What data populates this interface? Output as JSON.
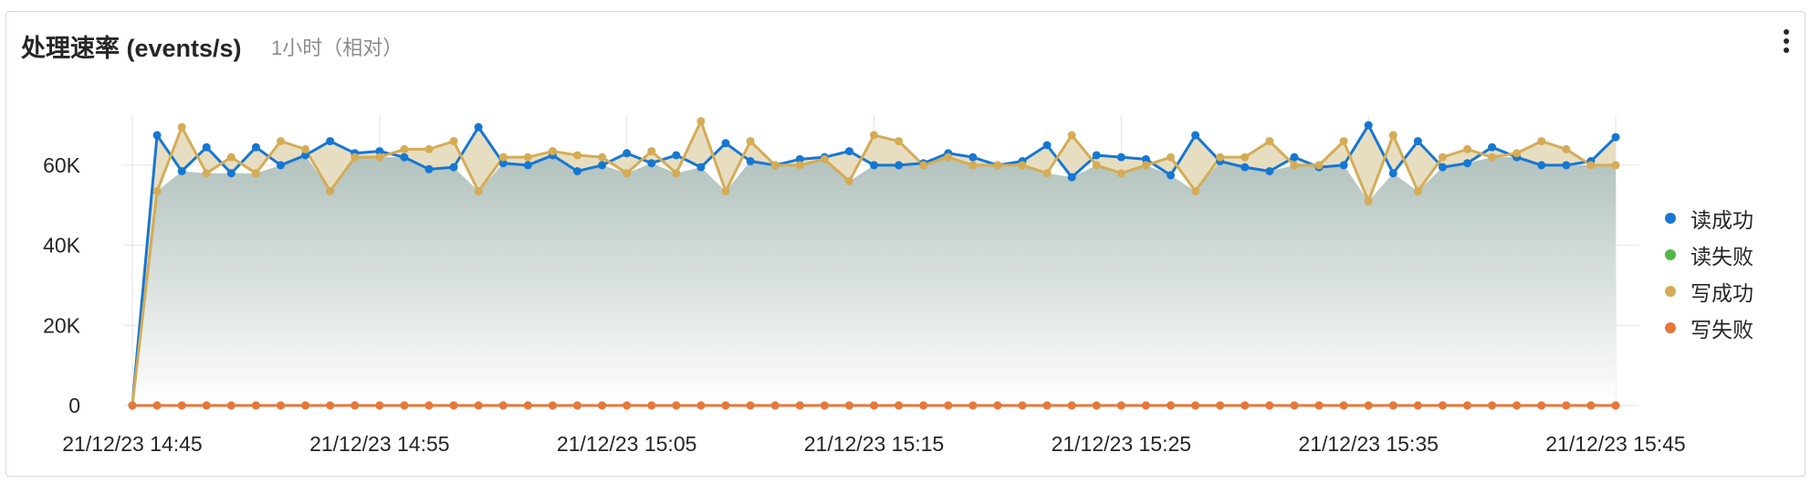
{
  "panel": {
    "title": "处理速率 (events/s)",
    "subtitle": "1小时（相对）",
    "menu_icon": "vertical-ellipsis-icon"
  },
  "chart_data": {
    "type": "area",
    "title": "处理速率 (events/s)",
    "x_range_minutes": [
      0,
      60
    ],
    "x_ticks": [
      {
        "minute": 0,
        "label": "21/12/23 14:45"
      },
      {
        "minute": 10,
        "label": "21/12/23 14:55"
      },
      {
        "minute": 20,
        "label": "21/12/23 15:05"
      },
      {
        "minute": 30,
        "label": "21/12/23 15:15"
      },
      {
        "minute": 40,
        "label": "21/12/23 15:25"
      },
      {
        "minute": 50,
        "label": "21/12/23 15:35"
      },
      {
        "minute": 60,
        "label": "21/12/23 15:45"
      }
    ],
    "y_ticks": [
      {
        "value": 0,
        "label": "0"
      },
      {
        "value": 20000,
        "label": "20K"
      },
      {
        "value": 40000,
        "label": "40K"
      },
      {
        "value": 60000,
        "label": "60K"
      }
    ],
    "ylim": [
      0,
      78000
    ],
    "grid": true,
    "legend_position": "right",
    "series": [
      {
        "name": "读成功",
        "color": "#1677d2",
        "fill": "#a8ccf0",
        "values": [
          0,
          67500,
          58500,
          64500,
          58000,
          64500,
          60000,
          62500,
          66000,
          63000,
          63500,
          62000,
          59000,
          59500,
          69500,
          60500,
          60000,
          62500,
          58500,
          60000,
          63000,
          60500,
          62500,
          59500,
          65500,
          61000,
          60000,
          61500,
          62000,
          63500,
          60000,
          60000,
          60500,
          63000,
          62000,
          60000,
          61000,
          65000,
          57000,
          62500,
          62000,
          61500,
          57500,
          67500,
          61000,
          59500,
          58500,
          62000,
          59500,
          60000,
          70000,
          58000,
          66000,
          59500,
          60500,
          64500,
          62000,
          60000,
          60000,
          61000,
          67000
        ]
      },
      {
        "name": "读失败",
        "color": "#52b848",
        "fill": "none",
        "values": [
          0,
          0,
          0,
          0,
          0,
          0,
          0,
          0,
          0,
          0,
          0,
          0,
          0,
          0,
          0,
          0,
          0,
          0,
          0,
          0,
          0,
          0,
          0,
          0,
          0,
          0,
          0,
          0,
          0,
          0,
          0,
          0,
          0,
          0,
          0,
          0,
          0,
          0,
          0,
          0,
          0,
          0,
          0,
          0,
          0,
          0,
          0,
          0,
          0,
          0,
          0,
          0,
          0,
          0,
          0,
          0,
          0,
          0,
          0,
          0,
          0
        ]
      },
      {
        "name": "写成功",
        "color": "#d4ac56",
        "fill": "#f0dfb8",
        "values": [
          0,
          53500,
          69500,
          58000,
          62000,
          58000,
          66000,
          64000,
          53500,
          62000,
          62000,
          64000,
          64000,
          66000,
          53500,
          62000,
          62000,
          63500,
          62500,
          62000,
          58000,
          63500,
          58000,
          71000,
          53500,
          66000,
          60000,
          60000,
          61500,
          56000,
          67500,
          66000,
          60000,
          62000,
          60000,
          60000,
          60000,
          58000,
          67500,
          60000,
          58000,
          60000,
          62000,
          53500,
          62000,
          62000,
          66000,
          60000,
          60000,
          66000,
          51000,
          67500,
          53500,
          62000,
          64000,
          62000,
          63000,
          66000,
          64000,
          60000,
          60000
        ]
      },
      {
        "name": "写失败",
        "color": "#e8763a",
        "fill": "none",
        "values": [
          0,
          0,
          0,
          0,
          0,
          0,
          0,
          0,
          0,
          0,
          0,
          0,
          0,
          0,
          0,
          0,
          0,
          0,
          0,
          0,
          0,
          0,
          0,
          0,
          0,
          0,
          0,
          0,
          0,
          0,
          0,
          0,
          0,
          0,
          0,
          0,
          0,
          0,
          0,
          0,
          0,
          0,
          0,
          0,
          0,
          0,
          0,
          0,
          0,
          0,
          0,
          0,
          0,
          0,
          0,
          0,
          0,
          0,
          0,
          0,
          0
        ]
      }
    ]
  }
}
